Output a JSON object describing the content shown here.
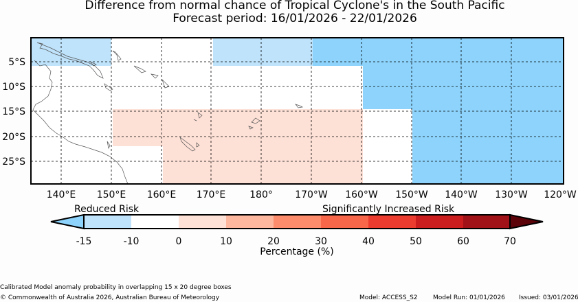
{
  "header": {
    "title": "Difference from normal chance of Tropical Cyclone's in the South Pacific",
    "forecast_period": "Forecast period: 16/01/2026 - 22/01/2026"
  },
  "map": {
    "lat_labels": [
      "5°S",
      "10°S",
      "15°S",
      "20°S",
      "25°S"
    ],
    "lon_labels": [
      "140°E",
      "150°E",
      "160°E",
      "170°E",
      "180°",
      "170°W",
      "160°W",
      "150°W",
      "140°W",
      "130°W",
      "120°W"
    ],
    "colors": {
      "reduced_light": "#bfe3fb",
      "increased_strong": "#8dd3fb",
      "increased_light": "#fde0d6"
    }
  },
  "colorbar": {
    "label_left": "Reduced Risk",
    "label_right": "Significantly Increased Risk",
    "ticks": [
      "-15",
      "-10",
      "0",
      "10",
      "20",
      "30",
      "40",
      "50",
      "60",
      "70"
    ],
    "xlabel": "Percentage (%)",
    "colors": [
      "#bfe3fb",
      "#ffffff",
      "#fde0d6",
      "#fcb79e",
      "#fc8c6c",
      "#f9674b",
      "#ec3c30",
      "#cb1c1e",
      "#a01217"
    ],
    "under_color": "#8dd3fb",
    "over_color": "#5b0309"
  },
  "footer": {
    "note": "Calibrated Model anomaly probability in overlapping 15 x 20 degree boxes",
    "copyright": "© Commonwealth of Australia 2026, Australian Bureau of Meteorology",
    "model": "Model: ACCESS_S2",
    "run": "Model Run: 01/01/2026",
    "issued": "Issued: 03/01/2026"
  }
}
